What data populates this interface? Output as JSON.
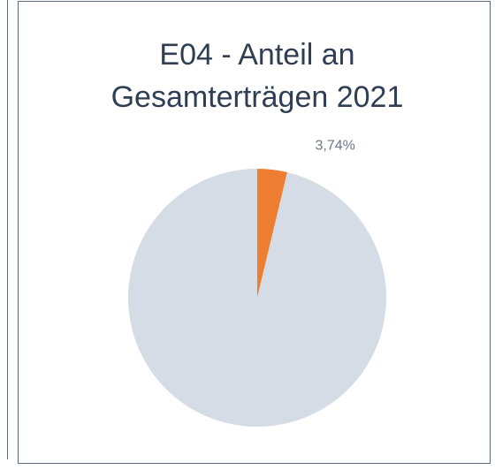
{
  "chart_data": {
    "type": "pie",
    "title": "E04 - Anteil an Gesamterträgen 2021",
    "values": [
      3.74,
      96.26
    ],
    "value_labels": [
      "3,74%",
      null
    ],
    "colors": [
      "#ed7d31",
      "#d6dce5"
    ]
  }
}
